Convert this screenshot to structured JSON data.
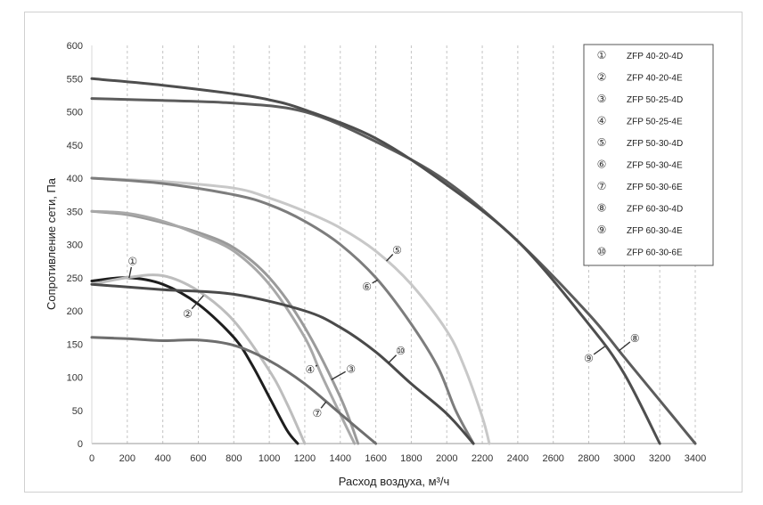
{
  "chart_data": {
    "type": "line",
    "xlabel": "Расход воздуха, м³/ч",
    "ylabel": "Сопротивление сети, Па",
    "xlim": [
      0,
      3400
    ],
    "ylim": [
      0,
      600
    ],
    "xticks": [
      "0",
      "200",
      "400",
      "600",
      "800",
      "1000",
      "1200",
      "1400",
      "1600",
      "1800",
      "2000",
      "2200",
      "2400",
      "2600",
      "2800",
      "3000",
      "3200",
      "3400"
    ],
    "yticks": [
      "0",
      "50",
      "100",
      "150",
      "200",
      "250",
      "300",
      "350",
      "400",
      "450",
      "500",
      "550",
      "600"
    ],
    "grid": "vertical dashed",
    "legend_position": "top-right",
    "series": [
      {
        "name": "ZFP 40-20-4D",
        "marker": "①",
        "color": "#1e1e1e",
        "x": [
          0,
          200,
          400,
          600,
          800,
          900,
          1000,
          1100,
          1160
        ],
        "y": [
          245,
          250,
          240,
          210,
          160,
          120,
          70,
          20,
          0
        ]
      },
      {
        "name": "ZFP 40-20-4E",
        "marker": "②",
        "color": "#bdbdbd",
        "x": [
          0,
          200,
          400,
          600,
          800,
          1000,
          1100,
          1200
        ],
        "y": [
          240,
          250,
          253,
          230,
          185,
          110,
          60,
          0
        ]
      },
      {
        "name": "ZFP 50-25-4D",
        "marker": "③",
        "color": "#9a9a9a",
        "x": [
          0,
          200,
          400,
          600,
          800,
          1000,
          1200,
          1400,
          1500
        ],
        "y": [
          350,
          345,
          333,
          318,
          295,
          250,
          175,
          70,
          0
        ]
      },
      {
        "name": "ZFP 50-25-4E",
        "marker": "④",
        "color": "#a8a8a8",
        "x": [
          0,
          200,
          400,
          600,
          800,
          1000,
          1200,
          1300,
          1480
        ],
        "y": [
          350,
          347,
          335,
          315,
          290,
          240,
          160,
          100,
          0
        ]
      },
      {
        "name": "ZFP 50-30-4D",
        "marker": "⑤",
        "color": "#c8c8c8",
        "x": [
          0,
          400,
          800,
          1000,
          1200,
          1400,
          1600,
          1800,
          2000,
          2100,
          2200,
          2240
        ],
        "y": [
          400,
          395,
          385,
          370,
          350,
          325,
          290,
          240,
          170,
          115,
          40,
          0
        ]
      },
      {
        "name": "ZFP 50-30-4E",
        "marker": "⑥",
        "color": "#7d7d7d",
        "x": [
          0,
          400,
          800,
          1000,
          1200,
          1400,
          1600,
          1800,
          1950,
          2050,
          2150
        ],
        "y": [
          400,
          392,
          375,
          360,
          335,
          300,
          250,
          180,
          115,
          50,
          0
        ]
      },
      {
        "name": "ZFP 50-30-6E",
        "marker": "⑦",
        "color": "#6e6e6e",
        "x": [
          0,
          200,
          400,
          600,
          800,
          1000,
          1200,
          1400,
          1600
        ],
        "y": [
          160,
          158,
          155,
          156,
          148,
          125,
          90,
          45,
          0
        ]
      },
      {
        "name": "ZFP 60-30-4D",
        "marker": "⑧",
        "color": "#5c5c5c",
        "x": [
          0,
          400,
          800,
          1200,
          1600,
          2000,
          2400,
          2800,
          3000,
          3200,
          3400
        ],
        "y": [
          520,
          517,
          513,
          500,
          455,
          395,
          305,
          195,
          130,
          65,
          0
        ]
      },
      {
        "name": "ZFP 60-30-4E",
        "marker": "⑨",
        "color": "#4e4e4e",
        "x": [
          0,
          400,
          800,
          1000,
          1200,
          1600,
          2000,
          2400,
          2800,
          3000,
          3200
        ],
        "y": [
          550,
          540,
          527,
          518,
          503,
          460,
          390,
          305,
          180,
          105,
          0
        ]
      },
      {
        "name": "ZFP 60-30-6E",
        "marker": "⑩",
        "color": "#4a4a4a",
        "x": [
          0,
          400,
          800,
          1200,
          1400,
          1600,
          1800,
          2000,
          2150
        ],
        "y": [
          240,
          232,
          225,
          200,
          175,
          138,
          90,
          45,
          0
        ]
      }
    ],
    "annotations": [
      {
        "text": "①",
        "x": 230,
        "y": 275,
        "series": 0
      },
      {
        "text": "②",
        "x": 540,
        "y": 196,
        "series": 1
      },
      {
        "text": "③",
        "x": 1460,
        "y": 113,
        "series": 2
      },
      {
        "text": "④",
        "x": 1230,
        "y": 112,
        "series": 3
      },
      {
        "text": "⑤",
        "x": 1720,
        "y": 292,
        "series": 4
      },
      {
        "text": "⑥",
        "x": 1550,
        "y": 237,
        "series": 5
      },
      {
        "text": "⑦",
        "x": 1270,
        "y": 46,
        "series": 6
      },
      {
        "text": "⑧",
        "x": 3060,
        "y": 159,
        "series": 7
      },
      {
        "text": "⑨",
        "x": 2800,
        "y": 129,
        "series": 8
      },
      {
        "text": "⑩",
        "x": 1740,
        "y": 140,
        "series": 9
      }
    ]
  }
}
